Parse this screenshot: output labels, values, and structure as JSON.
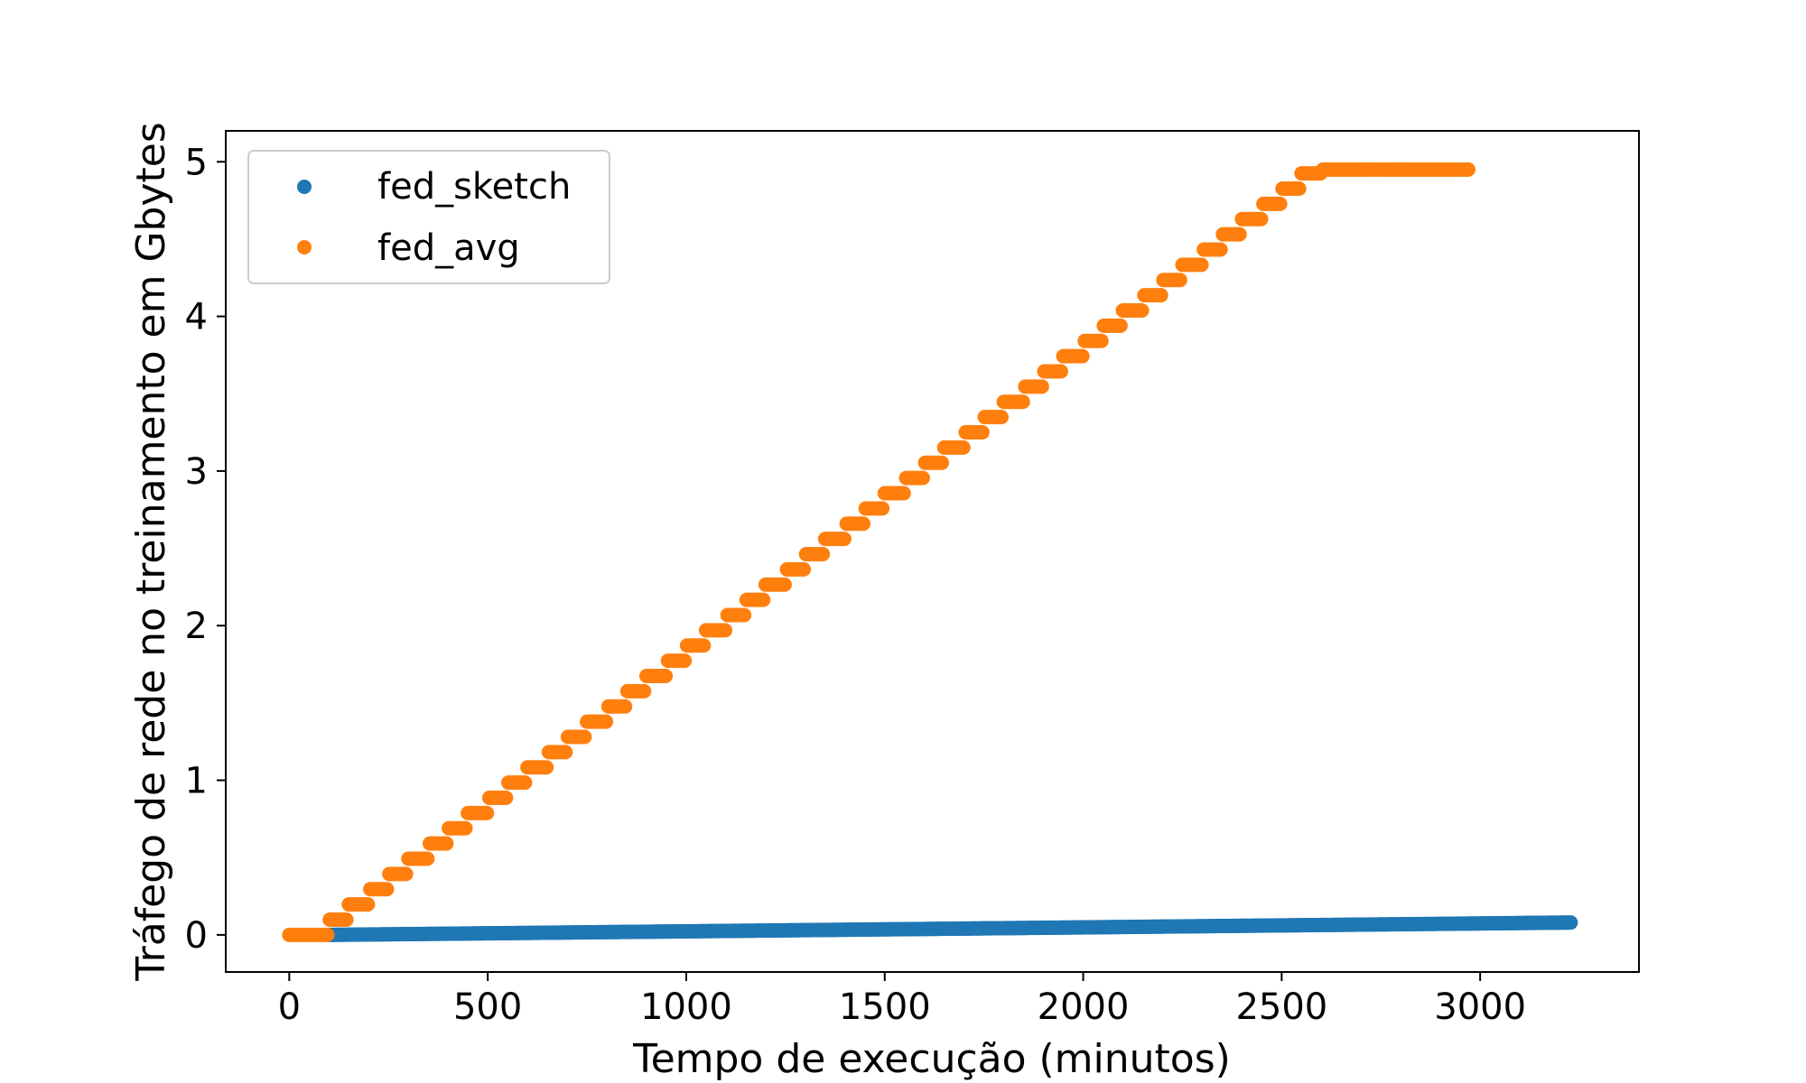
{
  "chart_data": {
    "type": "scatter",
    "xlabel": "Tempo de execução (minutos)",
    "ylabel": "Tráfego de rede no treinamento em Gbytes",
    "xlim": [
      -160,
      3400
    ],
    "ylim": [
      -0.24,
      5.2
    ],
    "x_ticks": [
      0,
      500,
      1000,
      1500,
      2000,
      2500,
      3000
    ],
    "y_ticks": [
      0,
      1,
      2,
      3,
      4,
      5
    ],
    "grid": false,
    "legend_position": "top-left",
    "series": [
      {
        "name": "fed_sketch",
        "color": "#1f77b4",
        "pattern": "linear",
        "x_start": 100,
        "x_end": 3230,
        "y_start": 0.0,
        "y_end": 0.08
      },
      {
        "name": "fed_avg",
        "color": "#ff7f0e",
        "pattern": "staircase",
        "x_start": 0,
        "x_end": 2975,
        "first_step_x": 100,
        "step_width_x": 50,
        "step_height_y": 0.0985,
        "y_start": 0.0,
        "y_end": 4.95
      }
    ]
  }
}
